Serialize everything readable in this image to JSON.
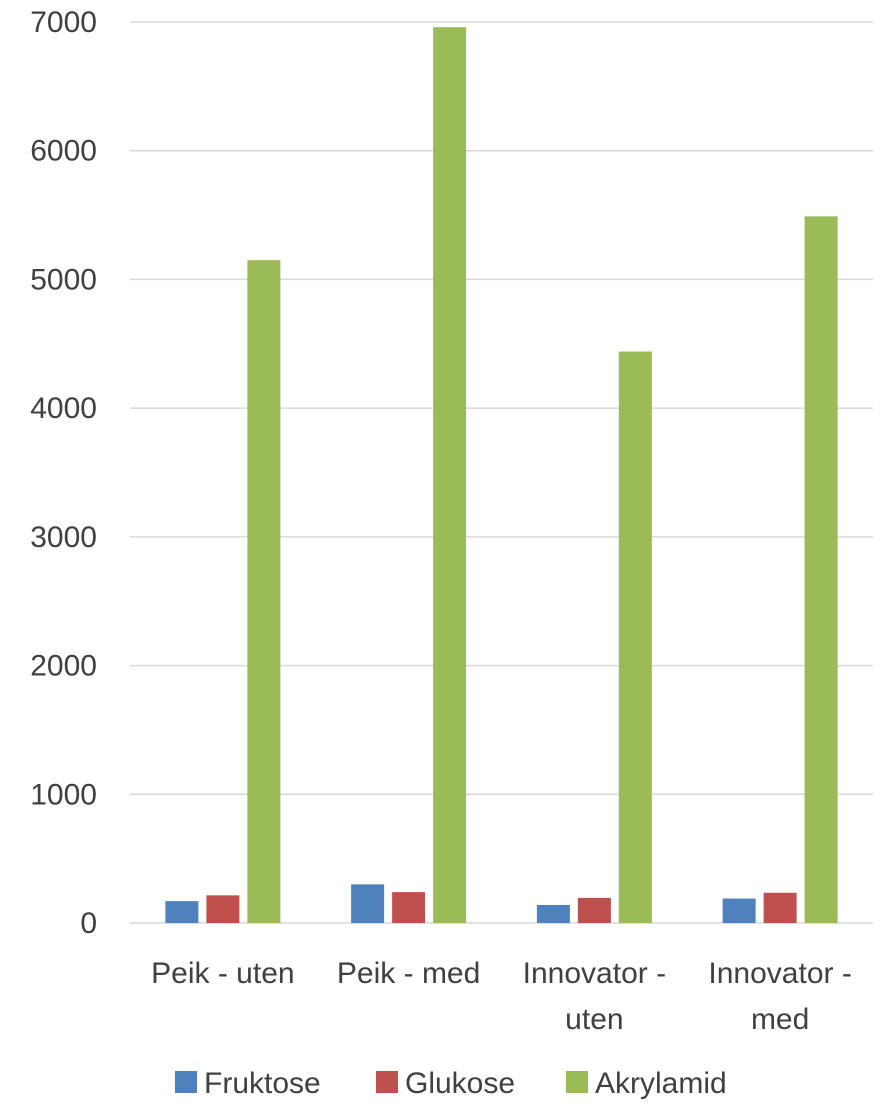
{
  "chart_data": {
    "type": "bar",
    "title": "",
    "xlabel": "",
    "ylabel": "",
    "categories": [
      [
        "Peik - uten"
      ],
      [
        "Peik - med"
      ],
      [
        "Innovator -",
        "uten"
      ],
      [
        "Innovator -",
        "med"
      ]
    ],
    "series": [
      {
        "name": "Fruktose",
        "color": "#4F81BD",
        "values": [
          170,
          300,
          140,
          190
        ]
      },
      {
        "name": "Glukose",
        "color": "#C0504D",
        "values": [
          215,
          240,
          195,
          235
        ]
      },
      {
        "name": "Akrylamid",
        "color": "#9BBB59",
        "values": [
          5150,
          6960,
          4440,
          5490
        ]
      }
    ],
    "ylim": [
      0,
      7000
    ],
    "yticks": [
      0,
      1000,
      2000,
      3000,
      4000,
      5000,
      6000,
      7000
    ],
    "grid": true,
    "legend_position": "bottom"
  },
  "colors": {
    "gridline": "#D9D9D9",
    "axis_text": "#404040"
  }
}
